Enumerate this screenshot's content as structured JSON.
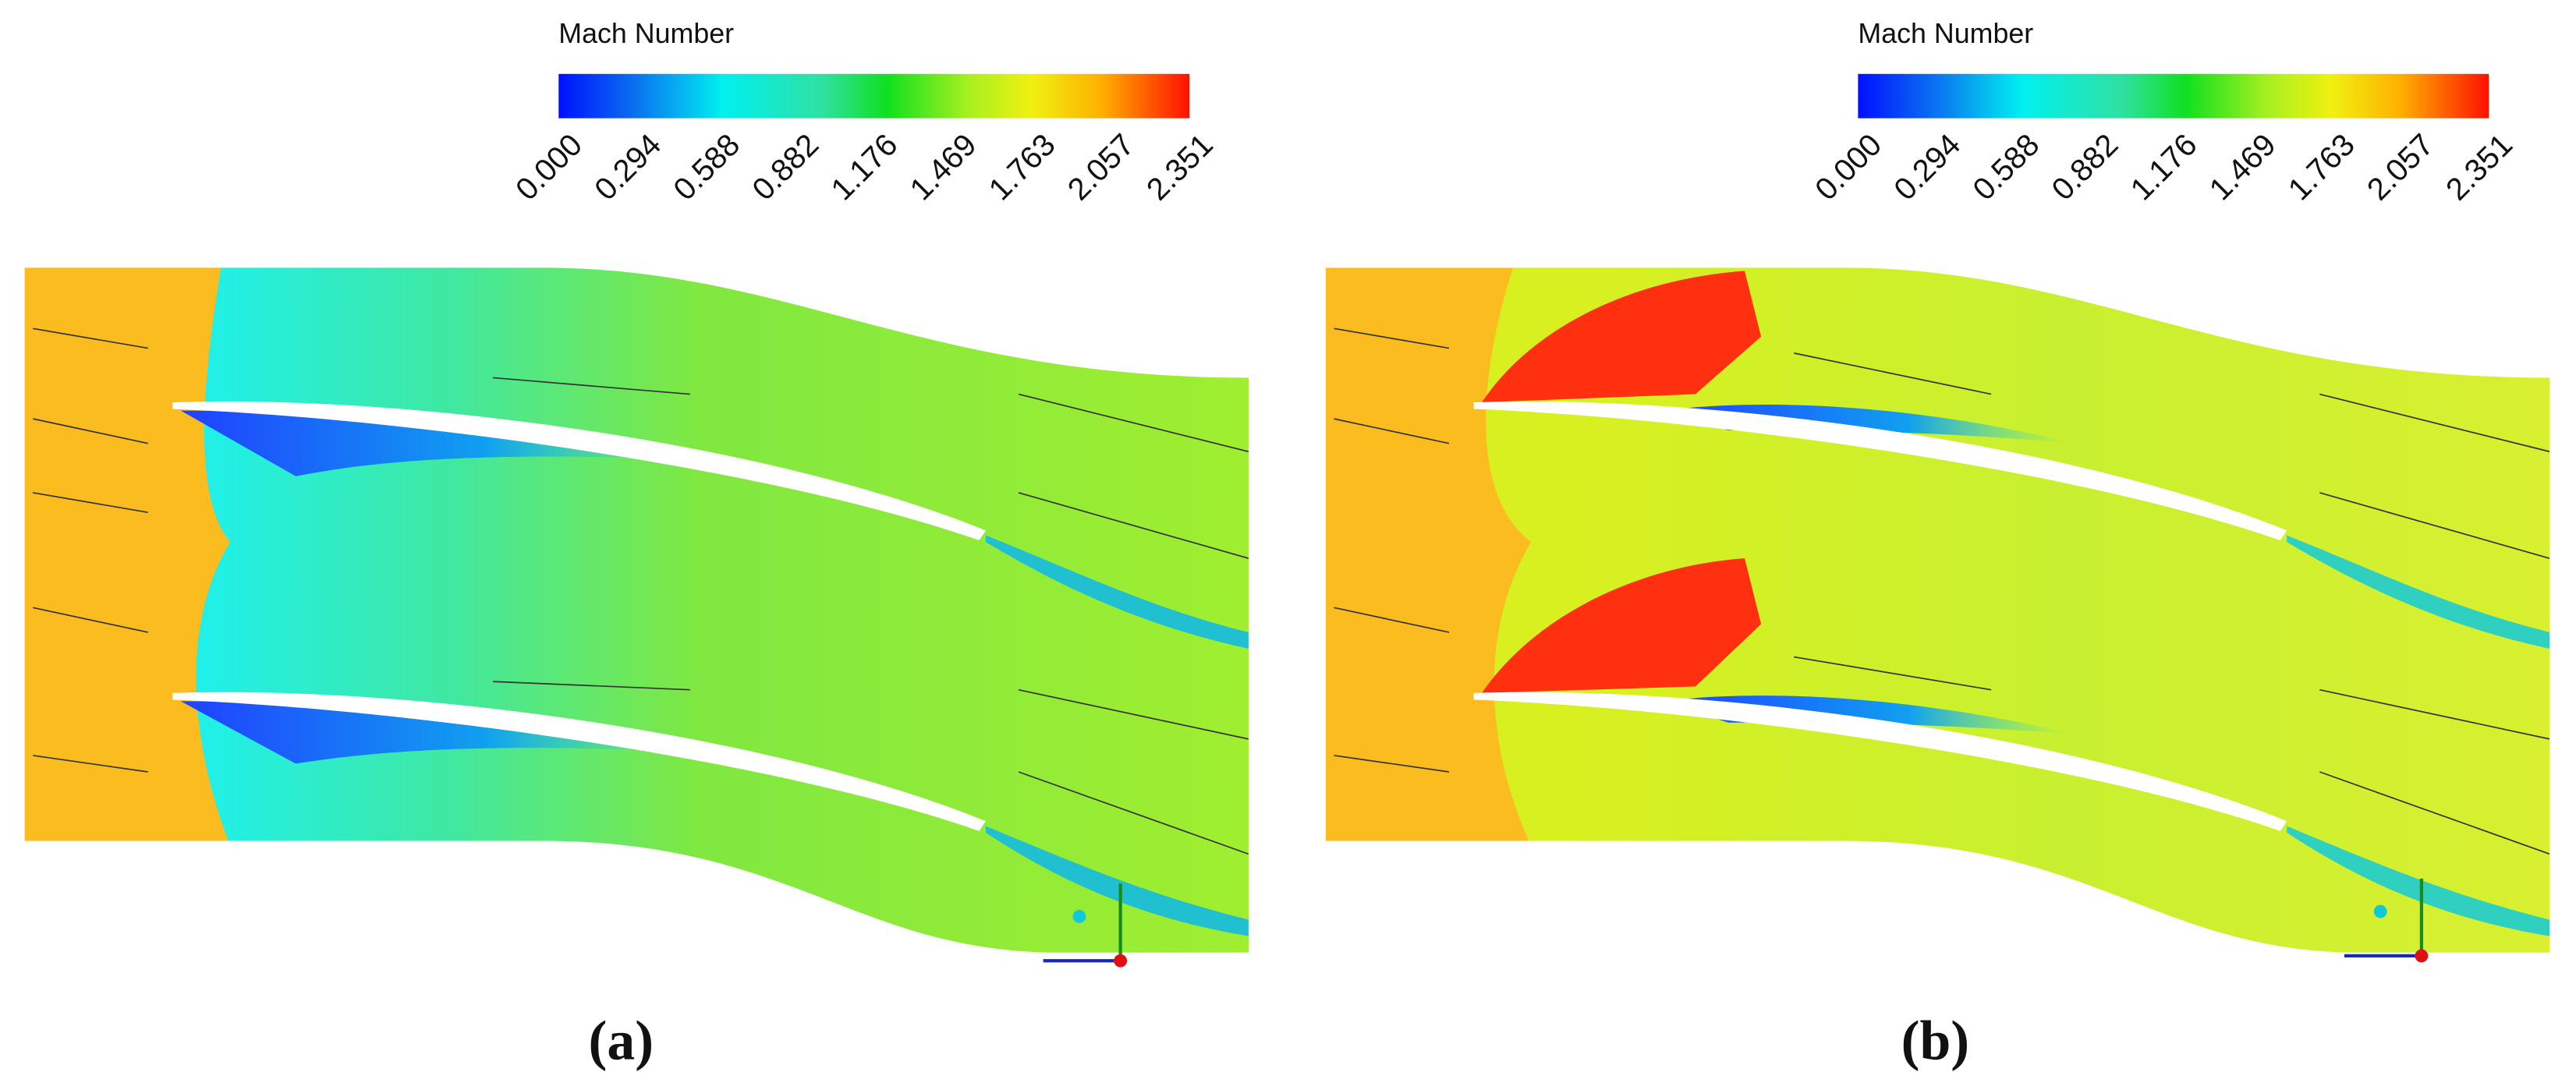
{
  "panels": [
    {
      "label": "(a)",
      "colorbar": {
        "title": "Mach Number",
        "ticks": [
          "0.000",
          "0.294",
          "0.588",
          "0.882",
          "1.176",
          "1.469",
          "1.763",
          "2.057",
          "2.351"
        ]
      }
    },
    {
      "label": "(b)",
      "colorbar": {
        "title": "Mach Number",
        "ticks": [
          "0.000",
          "0.294",
          "0.588",
          "0.882",
          "1.176",
          "1.469",
          "1.763",
          "2.057",
          "2.351"
        ]
      }
    }
  ]
}
